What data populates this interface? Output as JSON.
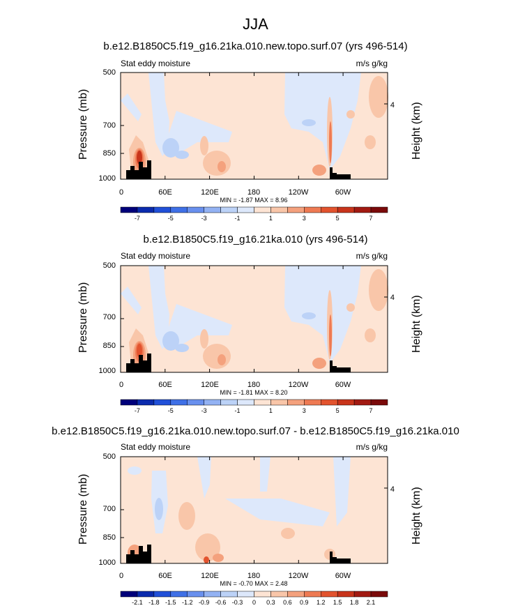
{
  "main_title": "JJA",
  "chart_data": [
    {
      "type": "heatmap",
      "title": "b.e12.B1850C5.f19_g16.21ka.010.new.topo.surf.07 (yrs 496-514)",
      "left_subtitle": "Stat eddy moisture",
      "right_subtitle": "m/s g/kg",
      "ylabel": "Pressure (mb)",
      "ylabel_right": "Height (km)",
      "yticks": [
        "500",
        "700",
        "850",
        "1000"
      ],
      "yticks_right": [
        "4"
      ],
      "xticks": [
        "0",
        "60E",
        "120E",
        "180",
        "120W",
        "60W"
      ],
      "minmax": "MIN = -1.87   MAX =  8.96",
      "colorbar_labels": [
        "-7",
        "-5",
        "-3",
        "-1",
        "1",
        "3",
        "5",
        "7"
      ],
      "colorbar_colors": [
        "#00007a",
        "#0b2bad",
        "#2150d8",
        "#3f70e6",
        "#6990ee",
        "#93b2f3",
        "#bcd2f7",
        "#dde8fb",
        "#fde4d4",
        "#f9c6a9",
        "#f4a17d",
        "#ee7a53",
        "#e2532e",
        "#c8341b",
        "#a21a12",
        "#7a0a0a"
      ]
    },
    {
      "type": "heatmap",
      "title": "b.e12.B1850C5.f19_g16.21ka.010 (yrs 496-514)",
      "left_subtitle": "Stat eddy moisture",
      "right_subtitle": "m/s g/kg",
      "ylabel": "Pressure (mb)",
      "ylabel_right": "Height (km)",
      "yticks": [
        "500",
        "700",
        "850",
        "1000"
      ],
      "yticks_right": [
        "4"
      ],
      "xticks": [
        "0",
        "60E",
        "120E",
        "180",
        "120W",
        "60W"
      ],
      "minmax": "MIN = -1.81   MAX =  8.20",
      "colorbar_labels": [
        "-7",
        "-5",
        "-3",
        "-1",
        "1",
        "3",
        "5",
        "7"
      ],
      "colorbar_colors": [
        "#00007a",
        "#0b2bad",
        "#2150d8",
        "#3f70e6",
        "#6990ee",
        "#93b2f3",
        "#bcd2f7",
        "#dde8fb",
        "#fde4d4",
        "#f9c6a9",
        "#f4a17d",
        "#ee7a53",
        "#e2532e",
        "#c8341b",
        "#a21a12",
        "#7a0a0a"
      ]
    },
    {
      "type": "heatmap",
      "title": "b.e12.B1850C5.f19_g16.21ka.010.new.topo.surf.07 - b.e12.B1850C5.f19_g16.21ka.010",
      "left_subtitle": "Stat eddy moisture",
      "right_subtitle": "m/s g/kg",
      "ylabel": "Pressure (mb)",
      "ylabel_right": "Height (km)",
      "yticks": [
        "500",
        "700",
        "850",
        "1000"
      ],
      "yticks_right": [
        "4"
      ],
      "xticks": [
        "0",
        "60E",
        "120E",
        "180",
        "120W",
        "60W"
      ],
      "minmax": "MIN = -0.70   MAX =  2.48",
      "colorbar_labels": [
        "-2.1",
        "-1.8",
        "-1.5",
        "-1.2",
        "-0.9",
        "-0.6",
        "-0.3",
        "0",
        "0.3",
        "0.6",
        "0.9",
        "1.2",
        "1.5",
        "1.8",
        "2.1"
      ],
      "colorbar_colors": [
        "#00007a",
        "#0b2bad",
        "#2150d8",
        "#3f70e6",
        "#6990ee",
        "#93b2f3",
        "#bcd2f7",
        "#dde8fb",
        "#fde4d4",
        "#f9c6a9",
        "#f4a17d",
        "#ee7a53",
        "#e2532e",
        "#c8341b",
        "#a21a12",
        "#7a0a0a"
      ]
    }
  ]
}
